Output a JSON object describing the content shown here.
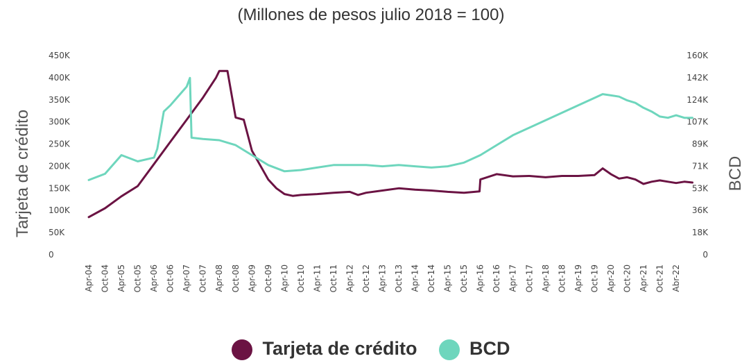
{
  "chart_data": {
    "type": "line",
    "title": "",
    "subtitle": "(Millones de pesos julio 2018 = 100)",
    "ylabel_left": "Tarjeta de crédito",
    "ylabel_right": "BCD",
    "y_left_ticks": [
      "0",
      "50K",
      "100K",
      "150K",
      "200K",
      "250K",
      "300K",
      "350K",
      "400K",
      "450K"
    ],
    "y_right_ticks": [
      "0",
      "18K",
      "36K",
      "53K",
      "71K",
      "89K",
      "107K",
      "124K",
      "142K",
      "160K"
    ],
    "ylim_left": [
      0,
      450000
    ],
    "ylim_right": [
      0,
      160000
    ],
    "x_labels": [
      "Apr-04",
      "Oct-04",
      "Apr-05",
      "Oct-05",
      "Apr-06",
      "Oct-06",
      "Apr-07",
      "Oct-07",
      "Apr-08",
      "Oct-08",
      "Apr-09",
      "Oct-09",
      "Apr-10",
      "Oct-10",
      "Apr-11",
      "Oct-11",
      "Apr-12",
      "Oct-12",
      "Apr-13",
      "Oct-13",
      "Apr-14",
      "Oct-14",
      "Apr-15",
      "Oct-15",
      "Apr-16",
      "Oct-16",
      "Apr-17",
      "Oct-17",
      "Apr-18",
      "Oct-18",
      "Apr-19",
      "Oct-19",
      "Apr-20",
      "Oct-20",
      "Apr-21",
      "Oct-21",
      "Abr-22"
    ],
    "legend_position": "bottom",
    "grid": false,
    "series": [
      {
        "name": "Tarjeta de crédito",
        "axis": "left",
        "color": "#6b1343",
        "x": [
          0,
          1,
          2,
          3,
          4,
          5,
          6,
          7,
          7.8,
          8,
          8.5,
          9,
          9.5,
          10,
          11,
          11.5,
          12,
          12.5,
          13,
          14,
          15,
          16,
          16.5,
          17,
          18,
          19,
          20,
          21,
          22,
          23,
          23.95,
          24,
          25,
          26,
          27,
          28,
          29,
          30,
          31,
          31.5,
          32,
          32.5,
          33,
          33.5,
          34,
          34.5,
          35,
          35.5,
          36,
          36.5,
          37
        ],
        "values": [
          85000,
          105000,
          132000,
          155000,
          205000,
          255000,
          305000,
          355000,
          400000,
          415000,
          415000,
          310000,
          305000,
          235000,
          170000,
          150000,
          137000,
          133000,
          135000,
          137000,
          140000,
          142000,
          135000,
          140000,
          145000,
          150000,
          147000,
          145000,
          142000,
          140000,
          143000,
          170000,
          182000,
          177000,
          178000,
          175000,
          178000,
          178000,
          180000,
          195000,
          182000,
          172000,
          175000,
          170000,
          160000,
          165000,
          168000,
          165000,
          162000,
          165000,
          163000
        ]
      },
      {
        "name": "BCD",
        "axis": "right",
        "color": "#6ed6bd",
        "x": [
          0,
          1,
          2,
          3,
          4,
          4.2,
          4.6,
          5,
          6,
          6.2,
          6.3,
          7,
          8,
          8.5,
          9,
          10,
          11,
          12,
          13,
          14,
          15,
          16,
          17,
          18,
          19,
          20,
          21,
          22,
          23,
          24,
          25,
          26,
          27,
          28,
          29,
          30,
          31,
          31.5,
          32,
          32.5,
          33,
          33.5,
          34,
          34.5,
          35,
          35.5,
          36,
          36.5,
          37
        ],
        "values": [
          60000,
          65000,
          80000,
          75000,
          78000,
          85000,
          115000,
          120000,
          135000,
          142000,
          94000,
          93000,
          92000,
          90000,
          88000,
          80000,
          72000,
          67000,
          68000,
          70000,
          72000,
          72000,
          72000,
          71000,
          72000,
          71000,
          70000,
          71000,
          74000,
          80000,
          88000,
          96000,
          102000,
          108000,
          114000,
          120000,
          126000,
          129000,
          128000,
          127000,
          124000,
          122000,
          118000,
          115000,
          111000,
          110000,
          112000,
          110000,
          110000
        ]
      }
    ]
  }
}
